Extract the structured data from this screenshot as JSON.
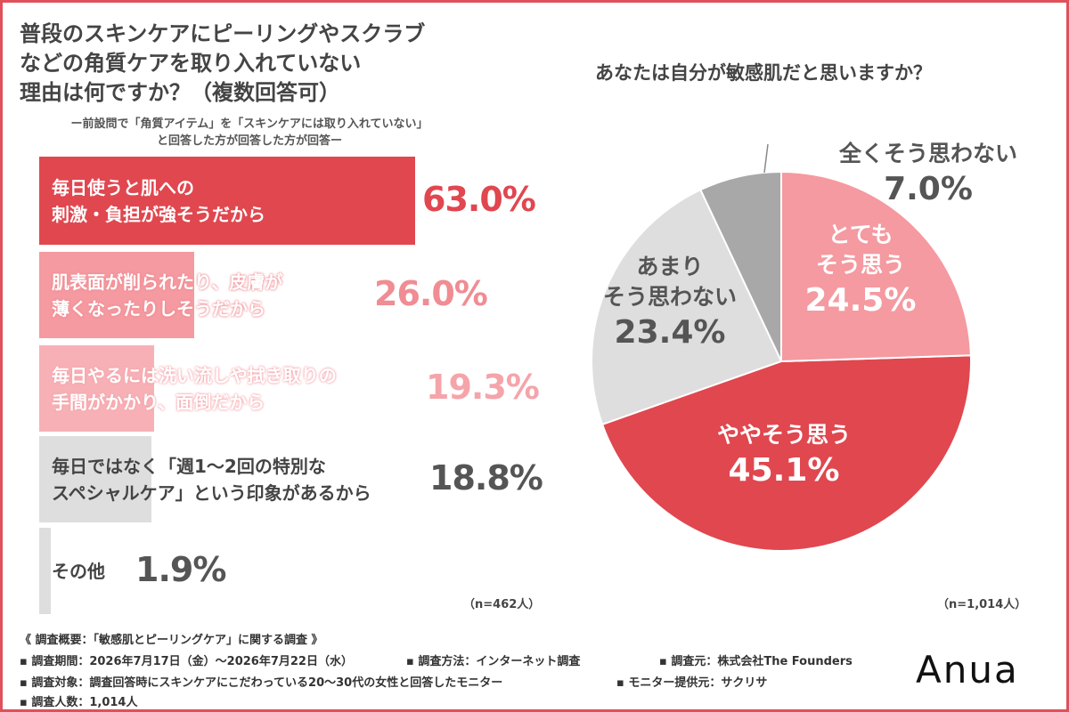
{
  "left_chart": {
    "title_lines": [
      "普段のスキンケアにピーリングやスクラブ",
      "などの角質ケアを取り入れていない",
      "理由は何ですか？（複数回答可）"
    ],
    "note_lines": [
      "ー前設問で「角質アイテム」を「スキンケアには取り入れていない」",
      "と回答した方が回答した方が回答ー"
    ],
    "n_label": "（n=462人）"
  },
  "right_chart": {
    "title": "あなたは自分が敏感肌だと思いますか？",
    "n_label": "（n=1,014人）"
  },
  "chart_data": [
    {
      "type": "bar",
      "orientation": "horizontal",
      "categories": [
        "毎日使うと肌への刺激・負担が強そうだから",
        "肌表面が削られたり、皮膚が薄くなったりしそうだから",
        "毎日やるには洗い流しや拭き取りの手間がかかり、面倒だから",
        "毎日ではなく「週1〜2回の特別なスペシャルケア」という印象があるから",
        "その他"
      ],
      "label_lines": [
        [
          "毎日使うと肌への",
          "刺激・負担が強そうだから"
        ],
        [
          "肌表面が削られたり、皮膚が",
          "薄くなったりしそうだから"
        ],
        [
          "毎日やるには洗い流しや拭き取りの",
          "手間がかかり、面倒だから"
        ],
        [
          "毎日ではなく「週1〜2回の特別な",
          "スペシャルケア」という印象があるから"
        ],
        [
          "その他"
        ]
      ],
      "values": [
        63.0,
        26.0,
        19.3,
        18.8,
        1.9
      ],
      "value_labels": [
        "63.0%",
        "26.0%",
        "19.3%",
        "18.8%",
        "1.9%"
      ],
      "bar_colors": [
        "#e0474f",
        "#f49aa0",
        "#f7b1b6",
        "#dedede",
        "#dedede"
      ],
      "label_colors": [
        "#ffffff",
        "#ffffff",
        "#ffffff",
        "#444444",
        "#444444"
      ],
      "value_colors": [
        "#e0474f",
        "#f08c93",
        "#f5a4aa",
        "#555555",
        "#555555"
      ],
      "unit": "%"
    },
    {
      "type": "pie",
      "categories": [
        "とてもそう思う",
        "ややそう思う",
        "あまりそう思わない",
        "全くそう思わない"
      ],
      "label_lines": [
        [
          "とても",
          "そう思う"
        ],
        [
          "ややそう思う"
        ],
        [
          "あまり",
          "そう思わない"
        ],
        [
          "全くそう思わない"
        ]
      ],
      "values": [
        24.5,
        45.1,
        23.4,
        7.0
      ],
      "value_labels": [
        "24.5%",
        "45.1%",
        "23.4%",
        "7.0%"
      ],
      "colors": [
        "#f49aa0",
        "#e0474f",
        "#dedede",
        "#a8a8a8"
      ],
      "label_colors": [
        "#ffffff",
        "#ffffff",
        "#555555",
        "#555555"
      ],
      "start_angle_deg": 0,
      "direction": "clockwise"
    }
  ],
  "footer": {
    "heading": "《 調査概要：「敏感肌とピーリングケア」に関する調査 》",
    "period": "▪ 調査期間：2026年7月17日（金）〜2026年7月22日（水）",
    "method": "▪ 調査方法：インターネット調査",
    "source": "▪ 調査元：株式会社The Founders",
    "target": "▪ 調査対象：調査回答時にスキンケアにこだわっている20〜30代の女性と回答したモニター",
    "provider": "▪ モニター提供元：サクリサ",
    "count": "▪ 調査人数：1,014人"
  },
  "logo": "Anua"
}
